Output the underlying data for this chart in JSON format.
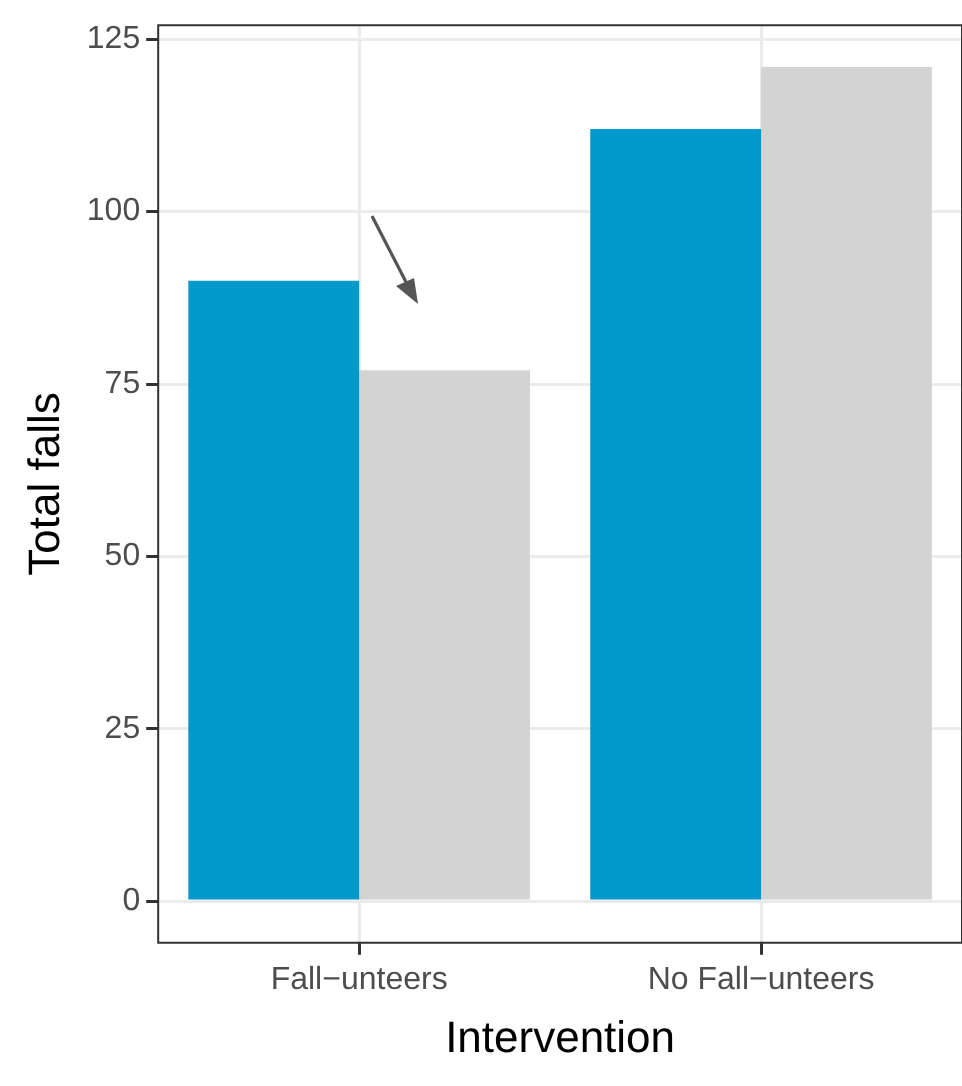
{
  "chart_data": {
    "type": "bar",
    "xlabel": "Intervention",
    "ylabel": "Total falls",
    "categories": [
      "Fall−unteers",
      "No Fall−unteers"
    ],
    "series": [
      {
        "color": "#0099cc",
        "values": [
          90,
          112
        ]
      },
      {
        "color": "#d3d3d3",
        "values": [
          77,
          121
        ]
      }
    ],
    "ylim": [
      -6.05,
      127.05
    ],
    "yticks": [
      0,
      25,
      50,
      75,
      100,
      125
    ],
    "grid": true,
    "legend": false
  }
}
